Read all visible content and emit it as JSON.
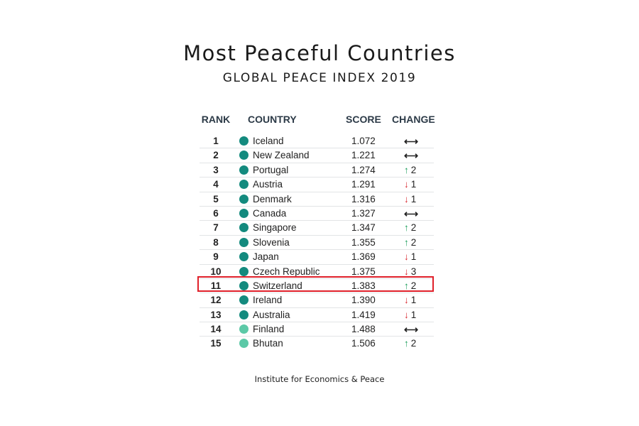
{
  "chart_data": {
    "type": "table",
    "title": "Most Peaceful Countries",
    "subtitle": "GLOBAL PEACE INDEX 2019",
    "columns": [
      "RANK",
      "COUNTRY",
      "SCORE",
      "CHANGE"
    ],
    "rows": [
      {
        "rank": "1",
        "country": "Iceland",
        "score": "1.072",
        "change_dir": "none",
        "change_value": "",
        "dot_color": "#138a7e"
      },
      {
        "rank": "2",
        "country": "New Zealand",
        "score": "1.221",
        "change_dir": "none",
        "change_value": "",
        "dot_color": "#138a7e"
      },
      {
        "rank": "3",
        "country": "Portugal",
        "score": "1.274",
        "change_dir": "up",
        "change_value": "2",
        "dot_color": "#138a7e"
      },
      {
        "rank": "4",
        "country": "Austria",
        "score": "1.291",
        "change_dir": "down",
        "change_value": "1",
        "dot_color": "#138a7e"
      },
      {
        "rank": "5",
        "country": "Denmark",
        "score": "1.316",
        "change_dir": "down",
        "change_value": "1",
        "dot_color": "#138a7e"
      },
      {
        "rank": "6",
        "country": "Canada",
        "score": "1.327",
        "change_dir": "none",
        "change_value": "",
        "dot_color": "#138a7e"
      },
      {
        "rank": "7",
        "country": "Singapore",
        "score": "1.347",
        "change_dir": "up",
        "change_value": "2",
        "dot_color": "#138a7e"
      },
      {
        "rank": "8",
        "country": "Slovenia",
        "score": "1.355",
        "change_dir": "up",
        "change_value": "2",
        "dot_color": "#138a7e"
      },
      {
        "rank": "9",
        "country": "Japan",
        "score": "1.369",
        "change_dir": "down",
        "change_value": "1",
        "dot_color": "#138a7e"
      },
      {
        "rank": "10",
        "country": "Czech Republic",
        "score": "1.375",
        "change_dir": "down",
        "change_value": "3",
        "dot_color": "#138a7e"
      },
      {
        "rank": "11",
        "country": "Switzerland",
        "score": "1.383",
        "change_dir": "up",
        "change_value": "2",
        "dot_color": "#138a7e"
      },
      {
        "rank": "12",
        "country": "Ireland",
        "score": "1.390",
        "change_dir": "down",
        "change_value": "1",
        "dot_color": "#138a7e"
      },
      {
        "rank": "13",
        "country": "Australia",
        "score": "1.419",
        "change_dir": "down",
        "change_value": "1",
        "dot_color": "#138a7e"
      },
      {
        "rank": "14",
        "country": "Finland",
        "score": "1.488",
        "change_dir": "none",
        "change_value": "",
        "dot_color": "#5cc9a7"
      },
      {
        "rank": "15",
        "country": "Bhutan",
        "score": "1.506",
        "change_dir": "up",
        "change_value": "2",
        "dot_color": "#5cc9a7"
      }
    ],
    "highlighted_rank": "11"
  },
  "source": "Institute for Economics & Peace",
  "colors": {
    "up": "#1b9e5a",
    "down": "#d8232a",
    "highlight": "#e0202a"
  }
}
